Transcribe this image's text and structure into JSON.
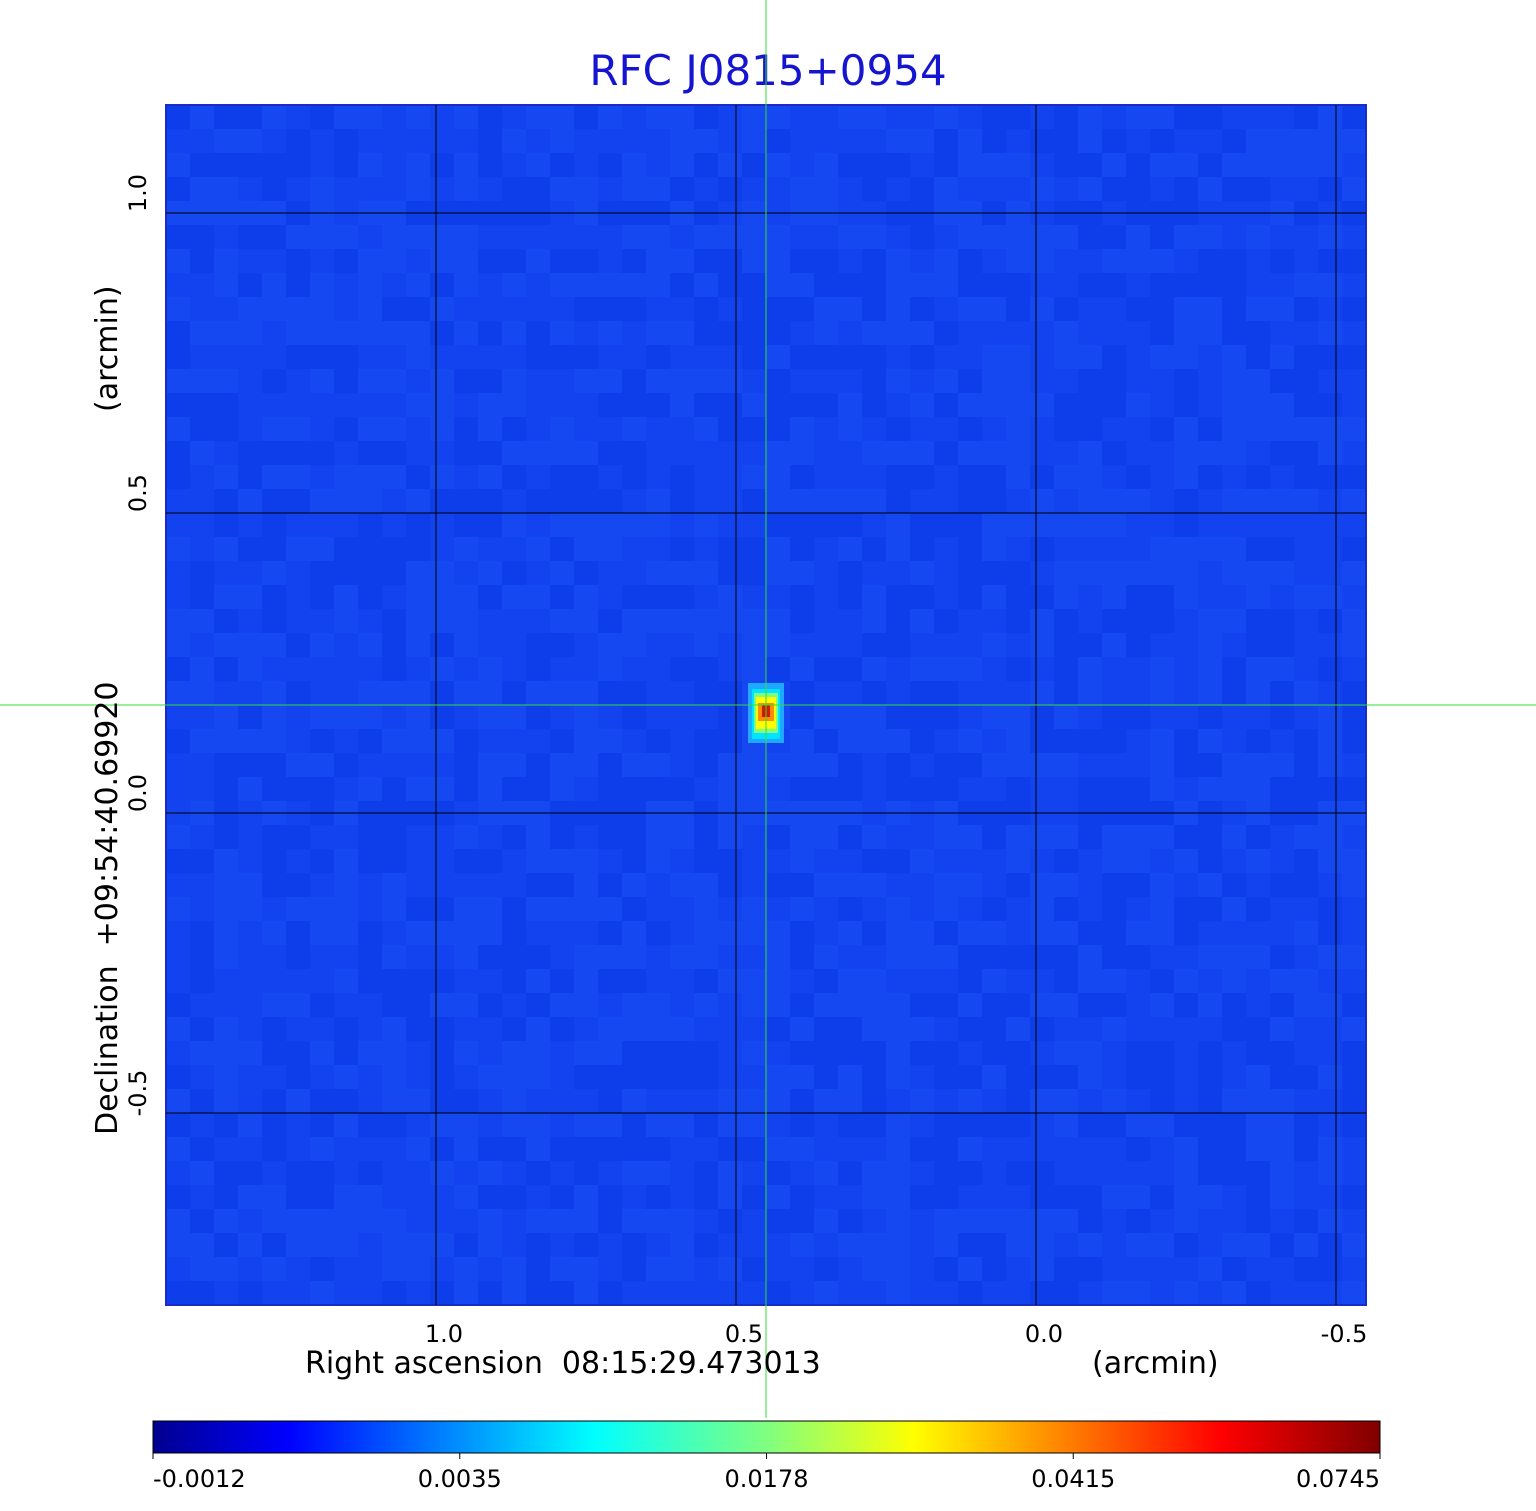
{
  "chart_data": {
    "type": "heatmap",
    "title": "RFC J0815+0954",
    "xlabel": "Right ascension  08:15:29.473013",
    "xlabel_unit": "(arcmin)",
    "ylabel": "Declination  +09:54:40.69920",
    "ylabel_unit": "(arcmin)",
    "x_range": [
      1.45,
      -0.55
    ],
    "y_range": [
      -0.82,
      1.18
    ],
    "x_ticks": [
      1.0,
      0.5,
      0.0,
      -0.5
    ],
    "x_tick_labels": [
      "1.0",
      "0.5",
      "0.0",
      "-0.5"
    ],
    "y_ticks": [
      -0.5,
      0.0,
      0.5,
      1.0
    ],
    "y_tick_labels": [
      "-0.5",
      "0.0",
      "0.5",
      "1.0"
    ],
    "grid": true,
    "source_peak": {
      "x": 0.45,
      "y": 0.18,
      "value": 0.0745
    },
    "crosshair": {
      "x": 0.45,
      "y": 0.18
    },
    "colorbar": {
      "ticks": [
        -0.0012,
        0.0035,
        0.0178,
        0.0415,
        0.0745
      ],
      "tick_labels": [
        "-0.0012",
        "0.0035",
        "0.0178",
        "0.0415",
        "0.0745"
      ],
      "colormap": "jet"
    }
  },
  "colors": {
    "title": "#1515d0",
    "background_map": "#1040ee",
    "crosshair": "#33dd33",
    "grid": "#000000"
  }
}
